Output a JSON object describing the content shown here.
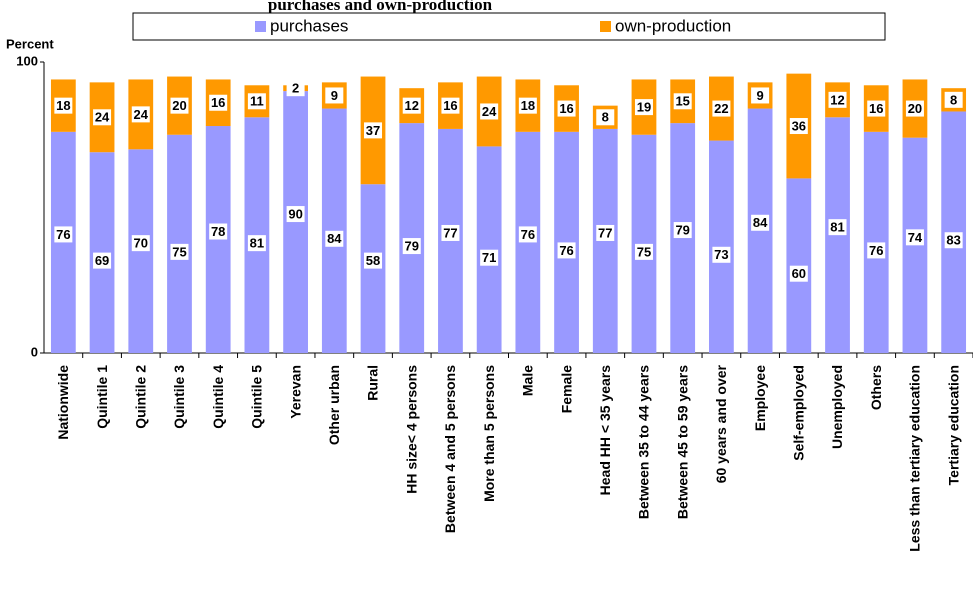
{
  "chart_data": {
    "type": "stacked-bar",
    "title": "purchases and own-production",
    "ylabel": "Percent",
    "categories": [
      "Nationwide",
      "Quintile 1",
      "Quintile 2",
      "Quintile 3",
      "Quintile 4",
      "Quintile 5",
      "Yerevan",
      "Other urban",
      "Rural",
      "HH size< 4 persons",
      "Between 4 and 5 persons",
      "More than 5 persons",
      "Male",
      "Female",
      "Head HH < 35 years",
      "Between 35 to 44 years",
      "Between 45 to 59 years",
      "60 years and over",
      "Employee",
      "Self-employed",
      "Unemployed",
      "Others",
      "Less than tertiary education",
      "Tertiary education"
    ],
    "series": [
      {
        "name": "purchases",
        "color": "#9999ff",
        "values": [
          76,
          69,
          70,
          75,
          78,
          81,
          90,
          84,
          58,
          79,
          77,
          71,
          76,
          76,
          77,
          75,
          79,
          73,
          84,
          60,
          81,
          76,
          74,
          83
        ]
      },
      {
        "name": "own-production",
        "color": "#ff9900",
        "values": [
          18,
          24,
          24,
          20,
          16,
          11,
          2,
          9,
          37,
          12,
          16,
          24,
          18,
          16,
          8,
          19,
          15,
          22,
          9,
          36,
          12,
          16,
          20,
          8
        ]
      }
    ],
    "ylim": [
      0,
      100
    ],
    "yticks": [
      0,
      100
    ],
    "grid": false
  }
}
